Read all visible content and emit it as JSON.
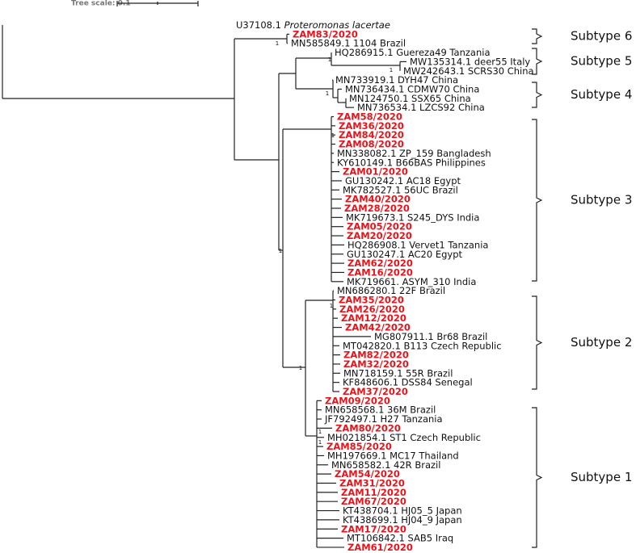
{
  "tree_scale": {
    "label": "Tree scale: 0.1"
  },
  "leaves": [
    {
      "label": "U37108.1",
      "species": "Proteromonas lacertae",
      "highlight": false
    },
    {
      "label": "ZAM83/2020",
      "highlight": true
    },
    {
      "label": "MN585849.1 1104 Brazil",
      "highlight": false
    },
    {
      "label": "HQ286915.1 Guereza49 Tanzania",
      "highlight": false
    },
    {
      "label": "MW135314.1 deer55 Italy",
      "highlight": false
    },
    {
      "label": "MW242643.1 SCRS30 China",
      "highlight": false
    },
    {
      "label": "MN733919.1 DYH47 China",
      "highlight": false
    },
    {
      "label": "MN736434.1 CDMW70 China",
      "highlight": false
    },
    {
      "label": "MN124750.1 SSX65 China",
      "highlight": false
    },
    {
      "label": "MN736534.1 LZCS92 China",
      "highlight": false
    },
    {
      "label": "ZAM58/2020",
      "highlight": true
    },
    {
      "label": "ZAM36/2020",
      "highlight": true
    },
    {
      "label": "ZAM84/2020",
      "highlight": true
    },
    {
      "label": "ZAM08/2020",
      "highlight": true
    },
    {
      "label": "MN338082.1 ZP_159 Bangladesh",
      "highlight": false
    },
    {
      "label": "KY610149.1 B66BAS Philippines",
      "highlight": false
    },
    {
      "label": "ZAM01/2020",
      "highlight": true
    },
    {
      "label": "GU130242.1 AC18 Egypt",
      "highlight": false
    },
    {
      "label": "MK782527.1 56UC Brazil",
      "highlight": false
    },
    {
      "label": "ZAM40/2020",
      "highlight": true
    },
    {
      "label": "ZAM28/2020",
      "highlight": true
    },
    {
      "label": "MK719673.1 S245_DYS India",
      "highlight": false
    },
    {
      "label": "ZAM05/2020",
      "highlight": true
    },
    {
      "label": "ZAM20/2020",
      "highlight": true
    },
    {
      "label": "HQ286908.1 Vervet1 Tanzania",
      "highlight": false
    },
    {
      "label": "GU130247.1 AC20 Egypt",
      "highlight": false
    },
    {
      "label": "ZAM62/2020",
      "highlight": true
    },
    {
      "label": "ZAM16/2020",
      "highlight": true
    },
    {
      "label": "MK719661. ASYM_310 India",
      "highlight": false
    },
    {
      "label": "MN686280.1 22F Brazil",
      "highlight": false
    },
    {
      "label": "ZAM35/2020",
      "highlight": true
    },
    {
      "label": "ZAM26/2020",
      "highlight": true
    },
    {
      "label": "ZAM12/2020",
      "highlight": true
    },
    {
      "label": "ZAM42/2020",
      "highlight": true
    },
    {
      "label": "MG807911.1 Br68 Brazil",
      "highlight": false
    },
    {
      "label": "MT042820.1 B113 Czech Republic",
      "highlight": false
    },
    {
      "label": "ZAM82/2020",
      "highlight": true
    },
    {
      "label": "ZAM32/2020",
      "highlight": true
    },
    {
      "label": "MN718159.1 55R Brazil",
      "highlight": false
    },
    {
      "label": "KF848606.1 DSS84 Senegal",
      "highlight": false
    },
    {
      "label": "ZAM37/2020",
      "highlight": true
    },
    {
      "label": "ZAM09/2020",
      "highlight": true
    },
    {
      "label": "MN658568.1 36M Brazil",
      "highlight": false
    },
    {
      "label": "JF792497.1 H27 Tanzania",
      "highlight": false
    },
    {
      "label": "ZAM80/2020",
      "highlight": true
    },
    {
      "label": "MH021854.1 ST1 Czech Republic",
      "highlight": false
    },
    {
      "label": "ZAM85/2020",
      "highlight": true
    },
    {
      "label": "MH197669.1 MC17 Thailand",
      "highlight": false
    },
    {
      "label": "MN658582.1 42R Brazil",
      "highlight": false
    },
    {
      "label": "ZAM54/2020",
      "highlight": true
    },
    {
      "label": "ZAM31/2020",
      "highlight": true
    },
    {
      "label": "ZAM11/2020",
      "highlight": true
    },
    {
      "label": "ZAM67/2020",
      "highlight": true
    },
    {
      "label": "KT438704.1 HJ05_5 Japan",
      "highlight": false
    },
    {
      "label": "KT438699.1 HJ04_9 Japan",
      "highlight": false
    },
    {
      "label": "ZAM17/2020",
      "highlight": true
    },
    {
      "label": "MT106842.1 SAB5 Iraq",
      "highlight": false
    },
    {
      "label": "ZAM61/2020",
      "highlight": true
    }
  ],
  "subtypes": [
    "Subtype 6",
    "Subtype 5",
    "Subtype 4",
    "Subtype 3",
    "Subtype 2",
    "Subtype 1"
  ],
  "bootstrap": [
    "1",
    "1",
    "1",
    "1",
    "1",
    "1",
    "1",
    "1",
    "1",
    "1"
  ]
}
